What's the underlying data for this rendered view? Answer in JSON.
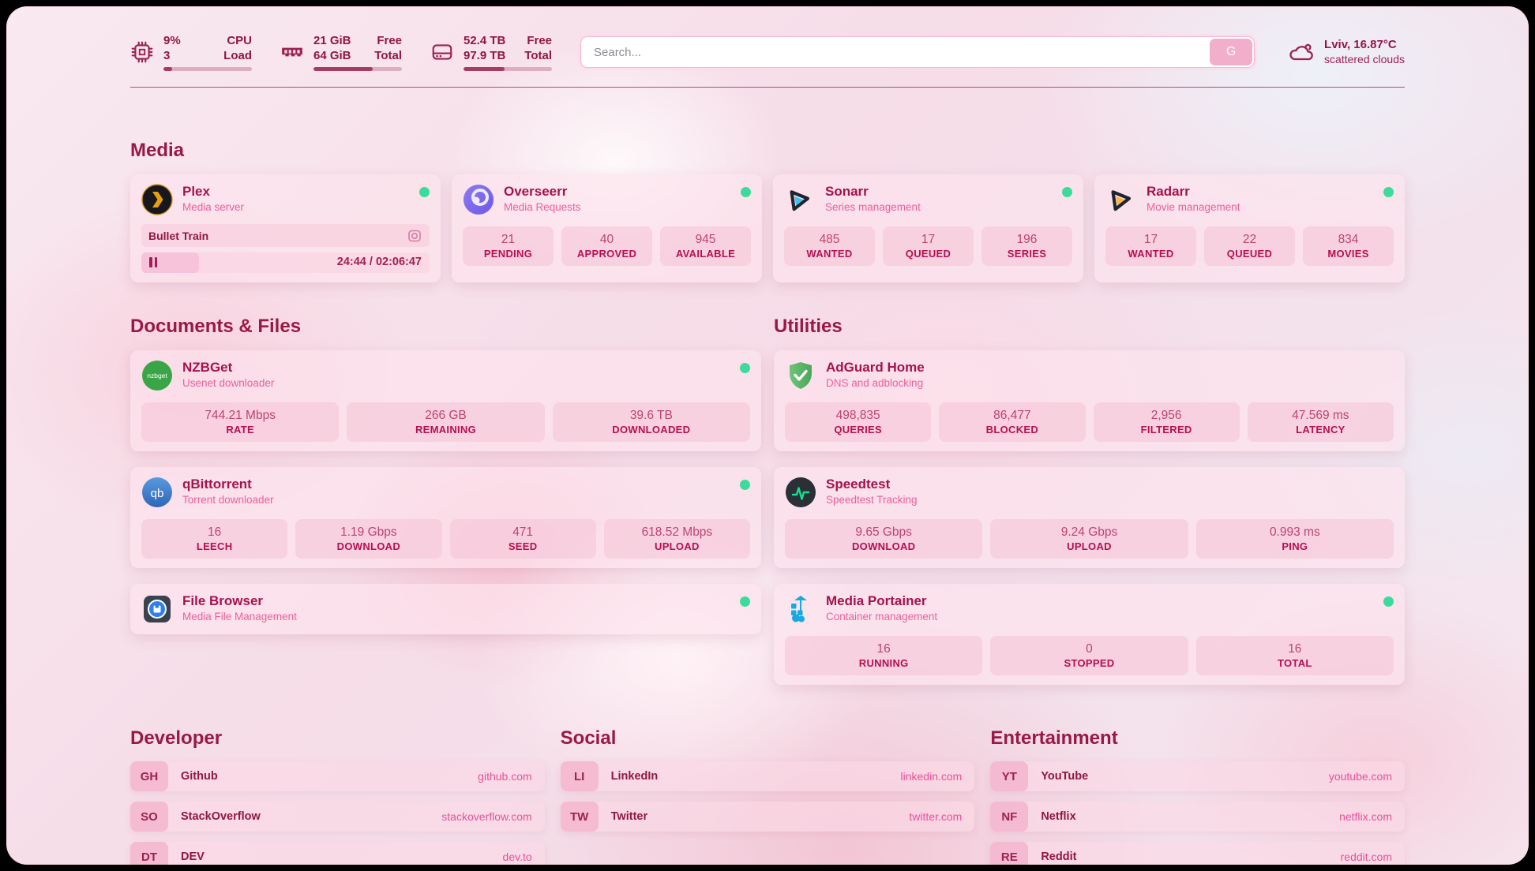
{
  "colors": {
    "accent": "#9b1b4a",
    "status_green": "#3bdb9e"
  },
  "header": {
    "metrics": [
      {
        "icon": "cpu-icon",
        "value": "9%",
        "value2": "3",
        "label": "CPU",
        "label2": "Load",
        "progress": 10
      },
      {
        "icon": "ram-icon",
        "value": "21 GiB",
        "value2": "64 GiB",
        "label": "Free",
        "label2": "Total",
        "progress": 67
      },
      {
        "icon": "disk-icon",
        "value": "52.4 TB",
        "value2": "97.9 TB",
        "label": "Free",
        "label2": "Total",
        "progress": 46
      }
    ],
    "search": {
      "placeholder": "Search...",
      "button_label": "G"
    },
    "weather": {
      "location": "Lviv, 16.87°C",
      "condition": "scattered clouds"
    }
  },
  "sections": {
    "media": {
      "title": "Media",
      "plex": {
        "name": "Plex",
        "subtitle": "Media server",
        "now_playing": "Bullet Train",
        "time": "24:44 / 02:06:47",
        "progress": 20
      },
      "overseerr": {
        "name": "Overseerr",
        "subtitle": "Media Requests",
        "stats": [
          {
            "value": "21",
            "label": "PENDING"
          },
          {
            "value": "40",
            "label": "APPROVED"
          },
          {
            "value": "945",
            "label": "AVAILABLE"
          }
        ]
      },
      "sonarr": {
        "name": "Sonarr",
        "subtitle": "Series management",
        "stats": [
          {
            "value": "485",
            "label": "WANTED"
          },
          {
            "value": "17",
            "label": "QUEUED"
          },
          {
            "value": "196",
            "label": "SERIES"
          }
        ]
      },
      "radarr": {
        "name": "Radarr",
        "subtitle": "Movie management",
        "stats": [
          {
            "value": "17",
            "label": "WANTED"
          },
          {
            "value": "22",
            "label": "QUEUED"
          },
          {
            "value": "834",
            "label": "MOVIES"
          }
        ]
      }
    },
    "documents": {
      "title": "Documents & Files",
      "nzbget": {
        "name": "NZBGet",
        "subtitle": "Usenet downloader",
        "stats": [
          {
            "value": "744.21 Mbps",
            "label": "RATE"
          },
          {
            "value": "266 GB",
            "label": "REMAINING"
          },
          {
            "value": "39.6 TB",
            "label": "DOWNLOADED"
          }
        ]
      },
      "qbittorrent": {
        "name": "qBittorrent",
        "subtitle": "Torrent downloader",
        "stats": [
          {
            "value": "16",
            "label": "LEECH"
          },
          {
            "value": "1.19 Gbps",
            "label": "DOWNLOAD"
          },
          {
            "value": "471",
            "label": "SEED"
          },
          {
            "value": "618.52 Mbps",
            "label": "UPLOAD"
          }
        ]
      },
      "filebrowser": {
        "name": "File Browser",
        "subtitle": "Media File Management"
      }
    },
    "utilities": {
      "title": "Utilities",
      "adguard": {
        "name": "AdGuard Home",
        "subtitle": "DNS and adblocking",
        "stats": [
          {
            "value": "498,835",
            "label": "QUERIES"
          },
          {
            "value": "86,477",
            "label": "BLOCKED"
          },
          {
            "value": "2,956",
            "label": "FILTERED"
          },
          {
            "value": "47.569 ms",
            "label": "LATENCY"
          }
        ]
      },
      "speedtest": {
        "name": "Speedtest",
        "subtitle": "Speedtest Tracking",
        "stats": [
          {
            "value": "9.65 Gbps",
            "label": "DOWNLOAD"
          },
          {
            "value": "9.24 Gbps",
            "label": "UPLOAD"
          },
          {
            "value": "0.993 ms",
            "label": "PING"
          }
        ]
      },
      "portainer": {
        "name": "Media Portainer",
        "subtitle": "Container management",
        "stats": [
          {
            "value": "16",
            "label": "RUNNING"
          },
          {
            "value": "0",
            "label": "STOPPED"
          },
          {
            "value": "16",
            "label": "TOTAL"
          }
        ]
      }
    },
    "developer": {
      "title": "Developer",
      "links": [
        {
          "abbr": "GH",
          "name": "Github",
          "url": "github.com"
        },
        {
          "abbr": "SO",
          "name": "StackOverflow",
          "url": "stackoverflow.com"
        },
        {
          "abbr": "DT",
          "name": "DEV",
          "url": "dev.to"
        }
      ]
    },
    "social": {
      "title": "Social",
      "links": [
        {
          "abbr": "LI",
          "name": "LinkedIn",
          "url": "linkedin.com"
        },
        {
          "abbr": "TW",
          "name": "Twitter",
          "url": "twitter.com"
        }
      ]
    },
    "entertainment": {
      "title": "Entertainment",
      "links": [
        {
          "abbr": "YT",
          "name": "YouTube",
          "url": "youtube.com"
        },
        {
          "abbr": "NF",
          "name": "Netflix",
          "url": "netflix.com"
        },
        {
          "abbr": "RE",
          "name": "Reddit",
          "url": "reddit.com"
        }
      ]
    }
  }
}
